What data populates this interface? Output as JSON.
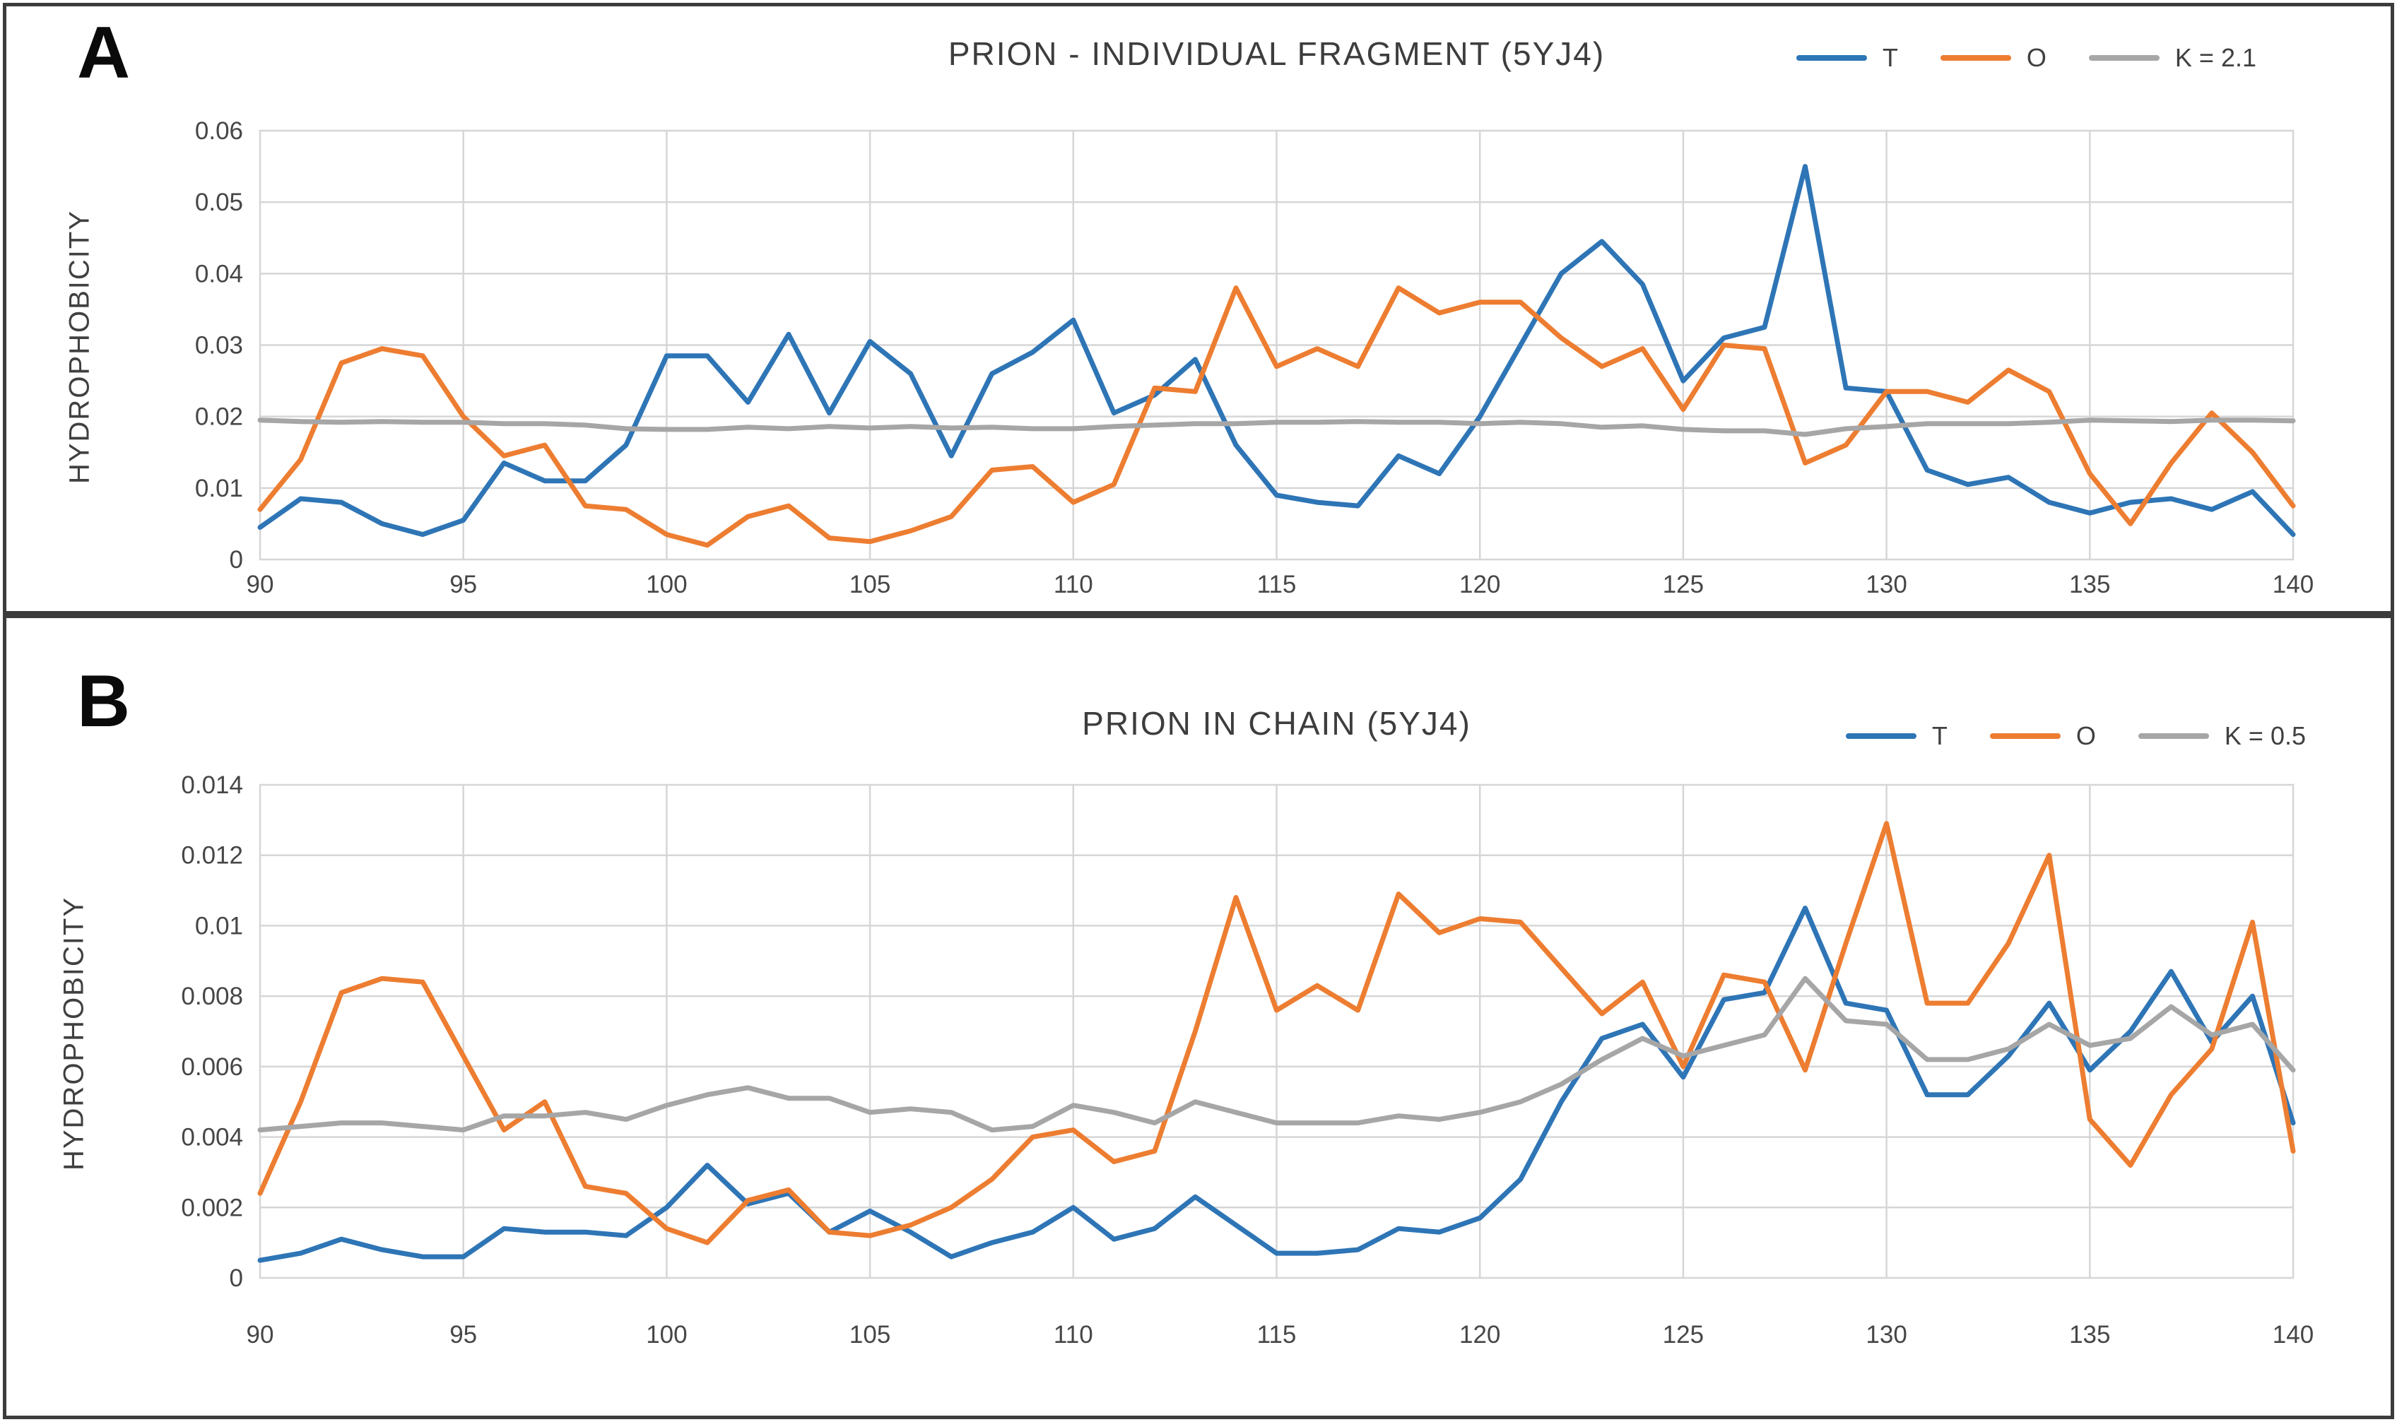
{
  "figure": {
    "background": "#ffffff",
    "frame_color": "#3c3c3c"
  },
  "colors": {
    "blue": "#2E75B6",
    "orange": "#ED7D31",
    "gray": "#A6A6A6",
    "gridline": "#D6D6D6",
    "text": "#404040"
  },
  "chart_data": [
    {
      "type": "line",
      "panel_label": "A",
      "title": "PRION - INDIVIDUAL FRAGMENT (5YJ4)",
      "xlabel": "",
      "ylabel": "HYDROPHOBICITY",
      "xlim": [
        90,
        140
      ],
      "ylim": [
        0,
        0.06
      ],
      "grid": true,
      "legend_position": "top-right",
      "xticks": [
        90,
        95,
        100,
        105,
        110,
        115,
        120,
        125,
        130,
        135,
        140
      ],
      "yticks": [
        "0",
        "0.01",
        "0.02",
        "0.03",
        "0.04",
        "0.05",
        "0.06"
      ],
      "x": [
        90,
        91,
        92,
        93,
        94,
        95,
        96,
        97,
        98,
        99,
        100,
        101,
        102,
        103,
        104,
        105,
        106,
        107,
        108,
        109,
        110,
        111,
        112,
        113,
        114,
        115,
        116,
        117,
        118,
        119,
        120,
        121,
        122,
        123,
        124,
        125,
        126,
        127,
        128,
        129,
        130,
        131,
        132,
        133,
        134,
        135,
        136,
        137,
        138,
        139,
        140
      ],
      "series": [
        {
          "name": "T",
          "color": "#2E75B6",
          "values": [
            0.0045,
            0.0085,
            0.008,
            0.005,
            0.0035,
            0.0055,
            0.0135,
            0.011,
            0.011,
            0.016,
            0.0285,
            0.0285,
            0.022,
            0.0315,
            0.0205,
            0.0305,
            0.026,
            0.0145,
            0.026,
            0.029,
            0.0335,
            0.0205,
            0.023,
            0.028,
            0.016,
            0.009,
            0.008,
            0.0075,
            0.0145,
            0.012,
            0.02,
            0.03,
            0.04,
            0.0445,
            0.0385,
            0.025,
            0.031,
            0.0325,
            0.055,
            0.024,
            0.0235,
            0.0125,
            0.0105,
            0.0115,
            0.008,
            0.0065,
            0.008,
            0.0085,
            0.007,
            0.0095,
            0.0035
          ]
        },
        {
          "name": "O",
          "color": "#ED7D31",
          "values": [
            0.007,
            0.014,
            0.0275,
            0.0295,
            0.0285,
            0.02,
            0.0145,
            0.016,
            0.0075,
            0.007,
            0.0035,
            0.002,
            0.006,
            0.0075,
            0.003,
            0.0025,
            0.004,
            0.006,
            0.0125,
            0.013,
            0.008,
            0.0105,
            0.024,
            0.0235,
            0.038,
            0.027,
            0.0295,
            0.027,
            0.038,
            0.0345,
            0.036,
            0.036,
            0.031,
            0.027,
            0.0295,
            0.021,
            0.03,
            0.0295,
            0.0135,
            0.016,
            0.0235,
            0.0235,
            0.022,
            0.0265,
            0.0235,
            0.012,
            0.005,
            0.0135,
            0.0205,
            0.015,
            0.0075
          ]
        },
        {
          "name": "K = 2.1",
          "color": "#A6A6A6",
          "values": [
            0.0195,
            0.0193,
            0.0192,
            0.0193,
            0.0192,
            0.0192,
            0.019,
            0.019,
            0.0188,
            0.0183,
            0.0182,
            0.0182,
            0.0185,
            0.0183,
            0.0186,
            0.0184,
            0.0186,
            0.0184,
            0.0185,
            0.0183,
            0.0183,
            0.0186,
            0.0188,
            0.019,
            0.019,
            0.0192,
            0.0192,
            0.0193,
            0.0192,
            0.0192,
            0.019,
            0.0192,
            0.019,
            0.0185,
            0.0187,
            0.0182,
            0.018,
            0.018,
            0.0175,
            0.0183,
            0.0186,
            0.019,
            0.019,
            0.019,
            0.0192,
            0.0195,
            0.0194,
            0.0193,
            0.0195,
            0.0195,
            0.0194
          ]
        }
      ]
    },
    {
      "type": "line",
      "panel_label": "B",
      "title": "PRION IN CHAIN (5YJ4)",
      "xlabel": "",
      "ylabel": "HYDROPHOBICITY",
      "xlim": [
        90,
        140
      ],
      "ylim": [
        0,
        0.014
      ],
      "grid": true,
      "legend_position": "top-right",
      "xticks": [
        90,
        95,
        100,
        105,
        110,
        115,
        120,
        125,
        130,
        135,
        140
      ],
      "yticks": [
        "0",
        "0.002",
        "0.004",
        "0.006",
        "0.008",
        "0.01",
        "0.012",
        "0.014"
      ],
      "x": [
        90,
        91,
        92,
        93,
        94,
        95,
        96,
        97,
        98,
        99,
        100,
        101,
        102,
        103,
        104,
        105,
        106,
        107,
        108,
        109,
        110,
        111,
        112,
        113,
        114,
        115,
        116,
        117,
        118,
        119,
        120,
        121,
        122,
        123,
        124,
        125,
        126,
        127,
        128,
        129,
        130,
        131,
        132,
        133,
        134,
        135,
        136,
        137,
        138,
        139,
        140
      ],
      "series": [
        {
          "name": "T",
          "color": "#2E75B6",
          "values": [
            0.0005,
            0.0007,
            0.0011,
            0.0008,
            0.0006,
            0.0006,
            0.0014,
            0.0013,
            0.0013,
            0.0012,
            0.002,
            0.0032,
            0.0021,
            0.0024,
            0.0013,
            0.0019,
            0.0013,
            0.0006,
            0.001,
            0.0013,
            0.002,
            0.0011,
            0.0014,
            0.0023,
            0.0015,
            0.0007,
            0.0007,
            0.0008,
            0.0014,
            0.0013,
            0.0017,
            0.0028,
            0.005,
            0.0068,
            0.0072,
            0.0057,
            0.0079,
            0.0081,
            0.0105,
            0.0078,
            0.0076,
            0.0052,
            0.0052,
            0.0063,
            0.0078,
            0.0059,
            0.007,
            0.0087,
            0.0067,
            0.008,
            0.0044
          ]
        },
        {
          "name": "O",
          "color": "#ED7D31",
          "values": [
            0.0024,
            0.005,
            0.0081,
            0.0085,
            0.0084,
            0.0063,
            0.0042,
            0.005,
            0.0026,
            0.0024,
            0.0014,
            0.001,
            0.0022,
            0.0025,
            0.0013,
            0.0012,
            0.0015,
            0.002,
            0.0028,
            0.004,
            0.0042,
            0.0033,
            0.0036,
            0.007,
            0.0108,
            0.0076,
            0.0083,
            0.0076,
            0.0109,
            0.0098,
            0.0102,
            0.0101,
            0.0088,
            0.0075,
            0.0084,
            0.006,
            0.0086,
            0.0084,
            0.0059,
            0.0095,
            0.0129,
            0.0078,
            0.0078,
            0.0095,
            0.012,
            0.0045,
            0.0032,
            0.0052,
            0.0065,
            0.0101,
            0.0036
          ]
        },
        {
          "name": "K = 0.5",
          "color": "#A6A6A6",
          "values": [
            0.0042,
            0.0043,
            0.0044,
            0.0044,
            0.0043,
            0.0042,
            0.0046,
            0.0046,
            0.0047,
            0.0045,
            0.0049,
            0.0052,
            0.0054,
            0.0051,
            0.0051,
            0.0047,
            0.0048,
            0.0047,
            0.0042,
            0.0043,
            0.0049,
            0.0047,
            0.0044,
            0.005,
            0.0047,
            0.0044,
            0.0044,
            0.0044,
            0.0046,
            0.0045,
            0.0047,
            0.005,
            0.0055,
            0.0062,
            0.0068,
            0.0063,
            0.0066,
            0.0069,
            0.0085,
            0.0073,
            0.0072,
            0.0062,
            0.0062,
            0.0065,
            0.0072,
            0.0066,
            0.0068,
            0.0077,
            0.0069,
            0.0072,
            0.0059
          ]
        }
      ]
    }
  ]
}
